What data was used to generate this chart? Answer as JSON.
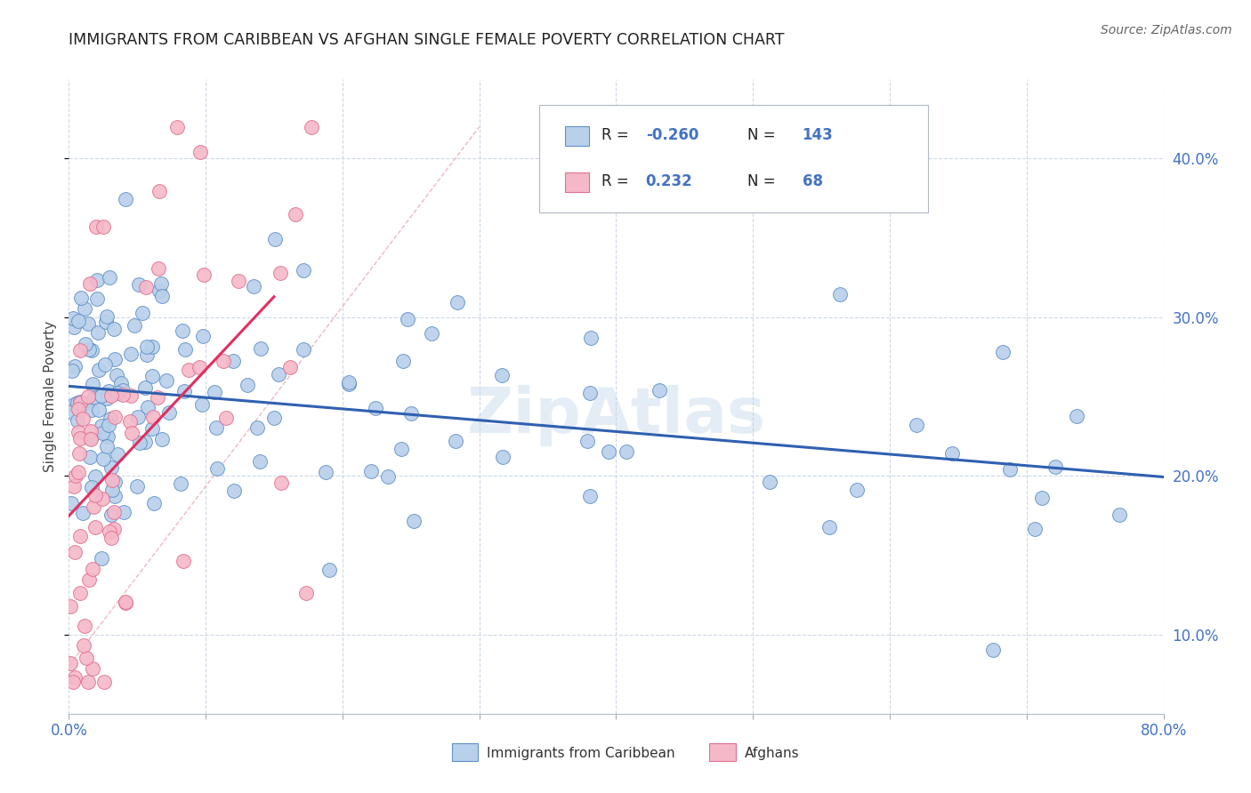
{
  "title": "IMMIGRANTS FROM CARIBBEAN VS AFGHAN SINGLE FEMALE POVERTY CORRELATION CHART",
  "source": "Source: ZipAtlas.com",
  "ylabel": "Single Female Poverty",
  "legend_labels": [
    "Immigrants from Caribbean",
    "Afghans"
  ],
  "r_caribbean": -0.26,
  "n_caribbean": 143,
  "r_afghan": 0.232,
  "n_afghan": 68,
  "color_caribbean": "#b8d0ea",
  "color_afghan": "#f5b8c8",
  "edge_caribbean": "#6090c8",
  "edge_afghan": "#e07090",
  "line_color_caribbean": "#3060b0",
  "line_color_afghan": "#e03060",
  "line_color_diag": "#e8a8b0",
  "watermark": "ZipAtlas",
  "xlim": [
    0.0,
    80.0
  ],
  "ylim": [
    5.0,
    45.0
  ],
  "y_tick_labels": [
    "10.0%",
    "20.0%",
    "30.0%",
    "40.0%"
  ],
  "y_ticks": [
    10,
    20,
    30,
    40
  ]
}
